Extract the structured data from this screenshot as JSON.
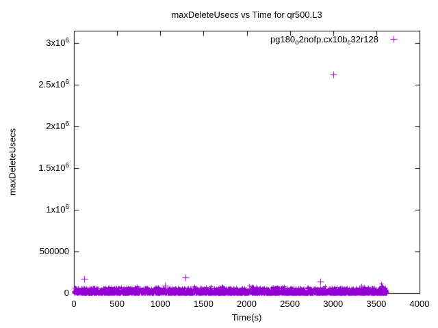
{
  "title": "maxDeleteUsecs vs Time for qr500.L3",
  "colors": {
    "series": "#9400d3",
    "axis": "#000000",
    "background": "#ffffff"
  },
  "axes": {
    "x": {
      "label": "Time(s)",
      "min": 0,
      "max": 4000,
      "ticks": [
        {
          "v": 0,
          "label": "0"
        },
        {
          "v": 500,
          "label": "500"
        },
        {
          "v": 1000,
          "label": "1000"
        },
        {
          "v": 1500,
          "label": "1500"
        },
        {
          "v": 2000,
          "label": "2000"
        },
        {
          "v": 2500,
          "label": "2500"
        },
        {
          "v": 3000,
          "label": "3000"
        },
        {
          "v": 3500,
          "label": "3500"
        },
        {
          "v": 4000,
          "label": "4000"
        }
      ]
    },
    "y": {
      "label": "maxDeleteUsecs",
      "min": 0,
      "max": 3150000,
      "ticks": [
        {
          "v": 0,
          "base": "0",
          "sup": ""
        },
        {
          "v": 500000,
          "base": "500000",
          "sup": ""
        },
        {
          "v": 1000000,
          "base": "1x10",
          "sup": "6"
        },
        {
          "v": 1500000,
          "base": "1.5x10",
          "sup": "6"
        },
        {
          "v": 2000000,
          "base": "2x10",
          "sup": "6"
        },
        {
          "v": 2500000,
          "base": "2.5x10",
          "sup": "6"
        },
        {
          "v": 3000000,
          "base": "3x10",
          "sup": "6"
        }
      ]
    }
  },
  "legend": {
    "series_name_raw": "pg180_o2nofp.cx10b_c32r128",
    "segments": [
      {
        "t": "pg180"
      },
      {
        "t": "o",
        "sub": true
      },
      {
        "t": "2nofp.cx10b"
      },
      {
        "t": "c",
        "sub": true
      },
      {
        "t": "32r128"
      }
    ],
    "marker": "+",
    "marker_color": "#9400d3",
    "position": "top-right-inside"
  },
  "chart_data": {
    "type": "scatter",
    "title": "maxDeleteUsecs vs Time for qr500.L3",
    "xlabel": "Time(s)",
    "ylabel": "maxDeleteUsecs",
    "xlim": [
      0,
      4000
    ],
    "ylim": [
      0,
      3150000
    ],
    "grid": false,
    "marker": "+",
    "series": [
      {
        "name": "pg180_o2nofp.cx10b_c32r128",
        "color": "#9400d3",
        "outliers": [
          [
            120,
            170000
          ],
          [
            1053,
            90000
          ],
          [
            1291,
            186000
          ],
          [
            2851,
            140000
          ],
          [
            3002,
            2623000
          ]
        ],
        "band": {
          "description": "dense noise band of per-second samples hugging y=0",
          "t_min": 0,
          "t_max": 3620,
          "v_min": 0,
          "v_typical_max": 65000,
          "v_spike_max": 90000,
          "end_clump": {
            "t_min": 3555,
            "t_max": 3620,
            "v_max": 115000
          },
          "dense_count": 2800,
          "low_count": 900,
          "speckle_count": 70,
          "end_count": 10
        }
      }
    ]
  }
}
